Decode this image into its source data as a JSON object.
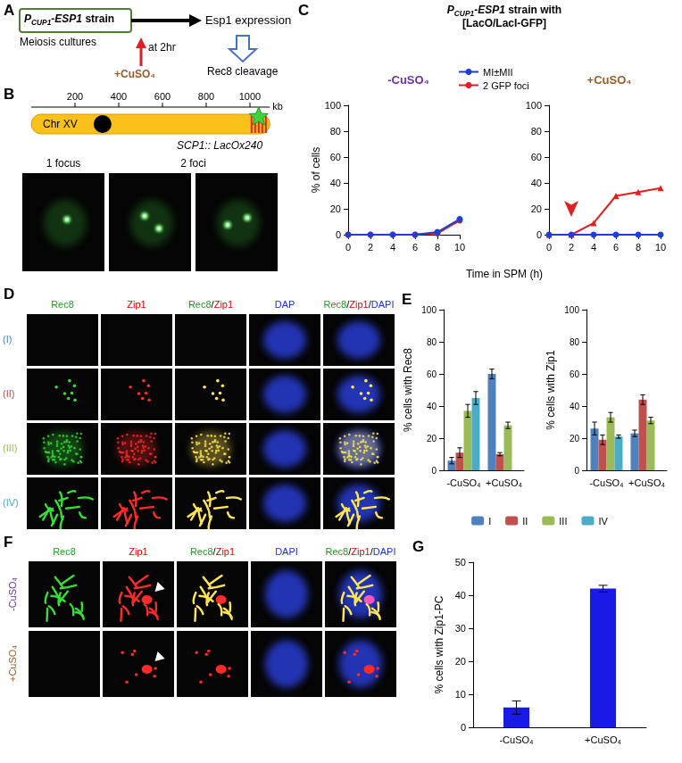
{
  "panel_labels": [
    "A",
    "B",
    "C",
    "D",
    "E",
    "F",
    "G"
  ],
  "panel_A": {
    "strain": [
      {
        "text": "P",
        "style": "italic"
      },
      {
        "text": "CUP1",
        "style": "sub"
      },
      {
        "text": "-ESP1",
        "style": "italic"
      },
      {
        "text": " strain",
        "style": "plain"
      }
    ],
    "culture": "Meiosis cultures",
    "product": "Esp1 expression",
    "time": "at 2hr",
    "treatment": "+CuSO₄",
    "treatment_color": "#9c5b2a",
    "outcome": "Rec8 cleavage"
  },
  "panel_B": {
    "scale_ticks": [
      200,
      400,
      600,
      800,
      1000
    ],
    "scale_unit": "kb",
    "chromosome": "Chr XV",
    "chromosome_length": 1091,
    "centromere": 326,
    "locus_position": 1040,
    "locus": "SCP1:: LacOx240",
    "image_labels": [
      "1 focus",
      "2 foci"
    ]
  },
  "panel_D": {
    "columns": [
      [
        {
          "text": "Rec8",
          "color": "#1f9e1f"
        }
      ],
      [
        {
          "text": "Zip1",
          "color": "#e00000"
        }
      ],
      [
        {
          "text": "Rec8",
          "color": "#1f9e1f"
        },
        {
          "text": "/",
          "color": "#000000"
        },
        {
          "text": "Zip1",
          "color": "#e00000"
        }
      ],
      [
        {
          "text": "DAP",
          "color": "#1f2fd0"
        }
      ],
      [
        {
          "text": "Rec8",
          "color": "#1f9e1f"
        },
        {
          "text": "/",
          "color": "#000000"
        },
        {
          "text": "Zip1",
          "color": "#e00000"
        },
        {
          "text": "/",
          "color": "#000000"
        },
        {
          "text": "DAPI",
          "color": "#1f2fd0"
        }
      ]
    ],
    "rows": [
      {
        "text": "(I)",
        "color": "#4f81bd"
      },
      {
        "text": "(II)",
        "color": "#c0504d"
      },
      {
        "text": "(III)",
        "color": "#9bbb59"
      },
      {
        "text": "(IV)",
        "color": "#4bacc6"
      }
    ]
  },
  "panel_F": {
    "columns": [
      [
        {
          "text": "Rec8",
          "color": "#1f9e1f"
        }
      ],
      [
        {
          "text": "Zip1",
          "color": "#e00000"
        }
      ],
      [
        {
          "text": "Rec8",
          "color": "#1f9e1f"
        },
        {
          "text": "/",
          "color": "#000000"
        },
        {
          "text": "Zip1",
          "color": "#e00000"
        }
      ],
      [
        {
          "text": "DAPI",
          "color": "#1f2fd0"
        }
      ],
      [
        {
          "text": "Rec8",
          "color": "#1f9e1f"
        },
        {
          "text": "/",
          "color": "#000000"
        },
        {
          "text": "Zip1",
          "color": "#e00000"
        },
        {
          "text": "/",
          "color": "#000000"
        },
        {
          "text": "DAPI",
          "color": "#1f2fd0"
        }
      ]
    ],
    "rows": [
      {
        "text": "-CuSO₄",
        "color": "#7030a0"
      },
      {
        "text": "+CuSO₄",
        "color": "#9c5b2a"
      }
    ]
  },
  "chart_data": [
    {
      "type": "line",
      "title_lines": [
        [
          {
            "text": "P",
            "style": "italic"
          },
          {
            "text": "CUP1",
            "style": "sub"
          },
          {
            "text": "-ESP1",
            "style": "italic"
          },
          {
            "text": " strain with",
            "style": "plain"
          }
        ],
        [
          {
            "text": "[LacO/LacI-GFP]",
            "style": "plain"
          }
        ]
      ],
      "xlabel": "Time in SPM (h)",
      "ylabel": "% of cells",
      "xlim": [
        0,
        10
      ],
      "xticks": [
        0,
        2,
        4,
        6,
        8,
        10
      ],
      "ylim": [
        0,
        100
      ],
      "yticks": [
        0,
        20,
        40,
        60,
        80,
        100
      ],
      "legend": "top",
      "subplots": [
        {
          "title": "-CuSO₄",
          "color": "#7030a0",
          "x": [
            0,
            2,
            4,
            6,
            8,
            10
          ],
          "series": [
            {
              "name": "MI±MII",
              "color": "#1f3fd0",
              "marker": "circle",
              "values": [
                0,
                0,
                0,
                0,
                2,
                12
              ]
            },
            {
              "name": "2 GFP foci",
              "color": "#e02020",
              "marker": "circle",
              "values": [
                0,
                0,
                0,
                0,
                1,
                11
              ]
            }
          ]
        },
        {
          "title": "+CuSO₄",
          "color": "#9c5b2a",
          "x": [
            0,
            2,
            4,
            6,
            8,
            10
          ],
          "arrow_at": 2,
          "series": [
            {
              "name": "MI±MII",
              "color": "#1f3fd0",
              "marker": "circle",
              "values": [
                0,
                0,
                0,
                0,
                0,
                0
              ]
            },
            {
              "name": "2 GFP foci",
              "color": "#e02020",
              "marker": "triangle",
              "values": [
                0,
                0,
                9,
                30,
                33,
                36
              ]
            }
          ]
        }
      ]
    },
    {
      "type": "bar",
      "legend": "bottom",
      "ylim": [
        0,
        100
      ],
      "yticks": [
        0,
        20,
        40,
        60,
        80,
        100
      ],
      "subplots": [
        {
          "ylabel": "% cells with Rec8",
          "categories": [
            "-CuSO₄",
            "+CuSO₄"
          ],
          "series": [
            {
              "name": "I",
              "color": "#4f81bd",
              "values": [
                6,
                60
              ],
              "errors": [
                2,
                3
              ]
            },
            {
              "name": "II",
              "color": "#c0504d",
              "values": [
                11,
                10
              ],
              "errors": [
                3,
                1
              ]
            },
            {
              "name": "III",
              "color": "#9bbb59",
              "values": [
                37,
                28
              ],
              "errors": [
                4,
                2
              ]
            },
            {
              "name": "IV",
              "color": "#4bacc6",
              "values": [
                45,
                null
              ],
              "errors": [
                4,
                null
              ]
            }
          ]
        },
        {
          "ylabel": "% cells with Zip1",
          "categories": [
            "-CuSO₄",
            "+CuSO₄"
          ],
          "series": [
            {
              "name": "I",
              "color": "#4f81bd",
              "values": [
                26,
                23
              ],
              "errors": [
                4,
                2
              ]
            },
            {
              "name": "II",
              "color": "#c0504d",
              "values": [
                19,
                44
              ],
              "errors": [
                3,
                3
              ]
            },
            {
              "name": "III",
              "color": "#9bbb59",
              "values": [
                33,
                31
              ],
              "errors": [
                3,
                2
              ]
            },
            {
              "name": "IV",
              "color": "#4bacc6",
              "values": [
                21,
                null
              ],
              "errors": [
                1,
                null
              ]
            }
          ]
        }
      ]
    },
    {
      "type": "bar",
      "ylabel": "% cells with Zip1-PC",
      "categories": [
        "-CuSO₄",
        "+CuSO₄"
      ],
      "values": [
        6,
        42
      ],
      "errors": [
        2,
        1
      ],
      "color": "#1a1ae6",
      "ylim": [
        0,
        50
      ],
      "yticks": [
        0,
        10,
        20,
        30,
        40,
        50
      ]
    }
  ]
}
